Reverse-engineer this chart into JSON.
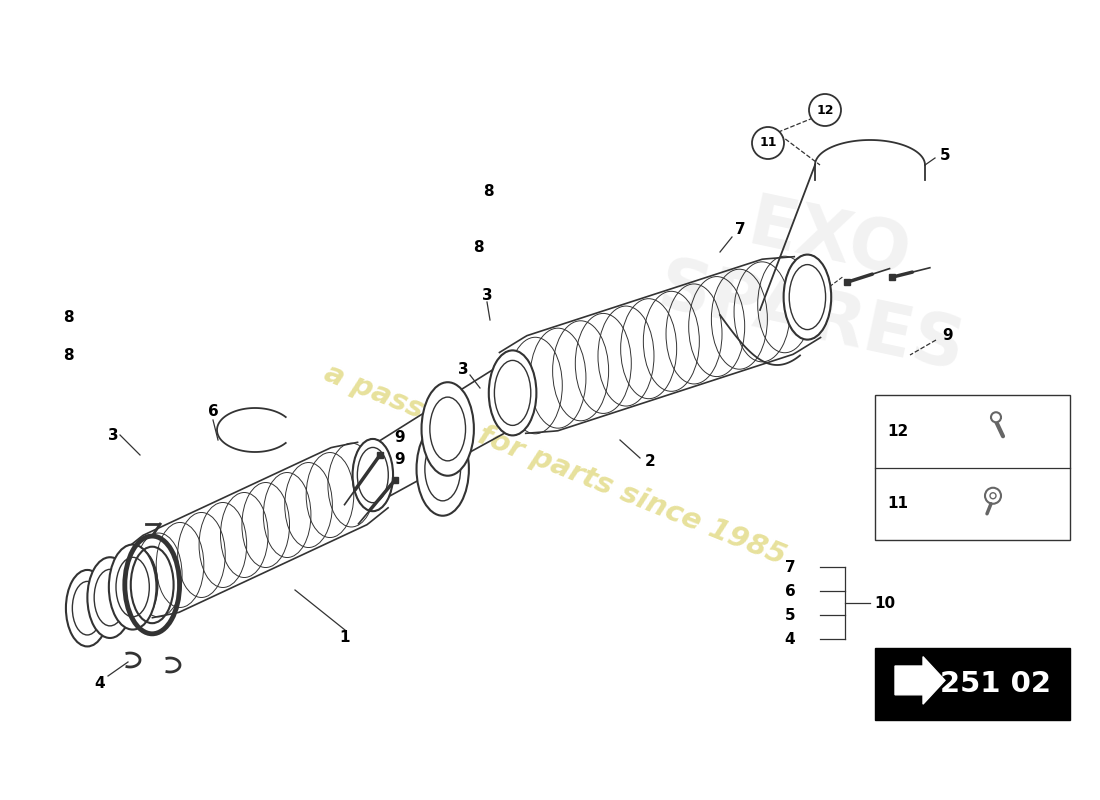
{
  "bg_color": "#ffffff",
  "line_color": "#333333",
  "watermark_color": "#d4c84a",
  "watermark_alpha": 0.55,
  "watermark_text": "a passion for parts since 1985",
  "badge_text": "251 02",
  "badge_color": "#000000",
  "label_fontsize": 11,
  "circle_label_fontsize": 10
}
